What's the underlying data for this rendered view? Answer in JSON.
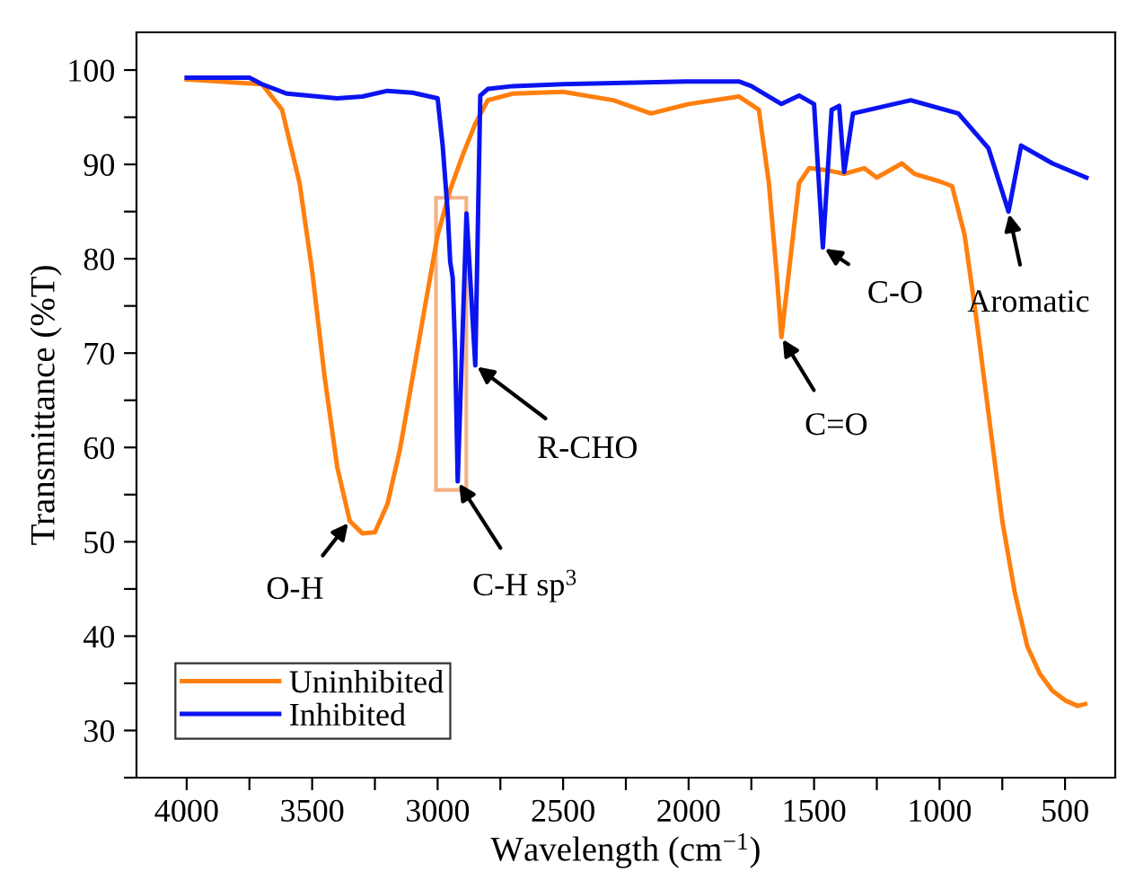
{
  "chart_data": {
    "type": "line",
    "xlabel": "Wavelength (cm$^{−1}$)",
    "ylabel": "Transmittance (%T)",
    "xlim": [
      4200,
      300
    ],
    "ylim": [
      25,
      104
    ],
    "xticks": [
      4000,
      {
        "value": 3750,
        "label": null
      },
      3500,
      {
        "value": 3250,
        "label": null
      },
      3000,
      {
        "value": 2750,
        "label": null
      },
      2500,
      {
        "value": 2250,
        "label": null
      },
      2000,
      {
        "value": 1750,
        "label": null
      },
      1500,
      {
        "value": 1250,
        "label": null
      },
      1000,
      {
        "value": 750,
        "label": null
      },
      500
    ],
    "yticks": [
      {
        "value": 25,
        "label": null
      },
      30,
      {
        "value": 35,
        "label": null
      },
      40,
      {
        "value": 45,
        "label": null
      },
      50,
      {
        "value": 55,
        "label": null
      },
      60,
      {
        "value": 65,
        "label": null
      },
      70,
      {
        "value": 75,
        "label": null
      },
      80,
      {
        "value": 85,
        "label": null
      },
      90,
      {
        "value": 95,
        "label": null
      },
      100
    ],
    "grid": false,
    "legend": "bottom left",
    "marker": "none",
    "line_style": "solid",
    "series": [
      {
        "name": "Uninhibited",
        "color": "#ff7f0e",
        "x": [
          4000,
          3700,
          3620,
          3550,
          3500,
          3450,
          3400,
          3350,
          3300,
          3250,
          3200,
          3150,
          3100,
          3050,
          3000,
          2950,
          2900,
          2850,
          2800,
          2700,
          2500,
          2300,
          2150,
          2000,
          1800,
          1720,
          1680,
          1650,
          1630,
          1600,
          1560,
          1520,
          1450,
          1380,
          1300,
          1250,
          1150,
          1100,
          1000,
          950,
          900,
          850,
          800,
          750,
          700,
          650,
          600,
          550,
          500,
          450,
          420
        ],
        "values": [
          99,
          98.5,
          95.8,
          88,
          78.7,
          67.4,
          57.9,
          52.2,
          50.9,
          51,
          54,
          59.8,
          67.4,
          75,
          82.5,
          87.3,
          91,
          94.3,
          96.8,
          97.5,
          97.7,
          96.8,
          95.4,
          96.4,
          97.2,
          95.8,
          88,
          78.7,
          71.7,
          78.7,
          88,
          89.6,
          89.4,
          89,
          89.6,
          88.6,
          90.1,
          89,
          88.2,
          87.7,
          82.5,
          73,
          62.6,
          52.2,
          44.6,
          38.9,
          36,
          34.2,
          33.2,
          32.6,
          32.8
        ]
      },
      {
        "name": "Inhibited",
        "color": "#0a14f0",
        "x": [
          4000,
          3750,
          3700,
          3600,
          3400,
          3300,
          3200,
          3100,
          3000,
          2980,
          2960,
          2950,
          2940,
          2930,
          2920,
          2885,
          2850,
          2830,
          2800,
          2700,
          2500,
          2000,
          1800,
          1750,
          1630,
          1560,
          1500,
          1465,
          1430,
          1400,
          1380,
          1345,
          1115,
          925,
          805,
          725,
          675,
          550,
          415
        ],
        "values": [
          99.2,
          99.2,
          98.5,
          97.5,
          97,
          97.2,
          97.8,
          97.6,
          97,
          92,
          85,
          79.7,
          78,
          70,
          56.4,
          84.8,
          68.7,
          97.3,
          98,
          98.3,
          98.5,
          98.8,
          98.8,
          98.3,
          96.4,
          97.3,
          96.4,
          81.2,
          95.8,
          96.2,
          89.2,
          95.4,
          96.8,
          95.4,
          91.7,
          85,
          92,
          90.1,
          88.6
        ]
      }
    ],
    "annotations": [
      {
        "text": "O-H",
        "x": 3350,
        "y": 52.2
      },
      {
        "text": "C-H sp$^{3}$",
        "x": 2920,
        "y": 56.4
      },
      {
        "text": "R-CHO",
        "x": 2850,
        "y": 68.7
      },
      {
        "text": "C=O",
        "x": 1630,
        "y": 71.7
      },
      {
        "text": "C-O",
        "x": 1465,
        "y": 81.2
      },
      {
        "text": "Aromatic",
        "x": 725,
        "y": 85
      }
    ]
  }
}
